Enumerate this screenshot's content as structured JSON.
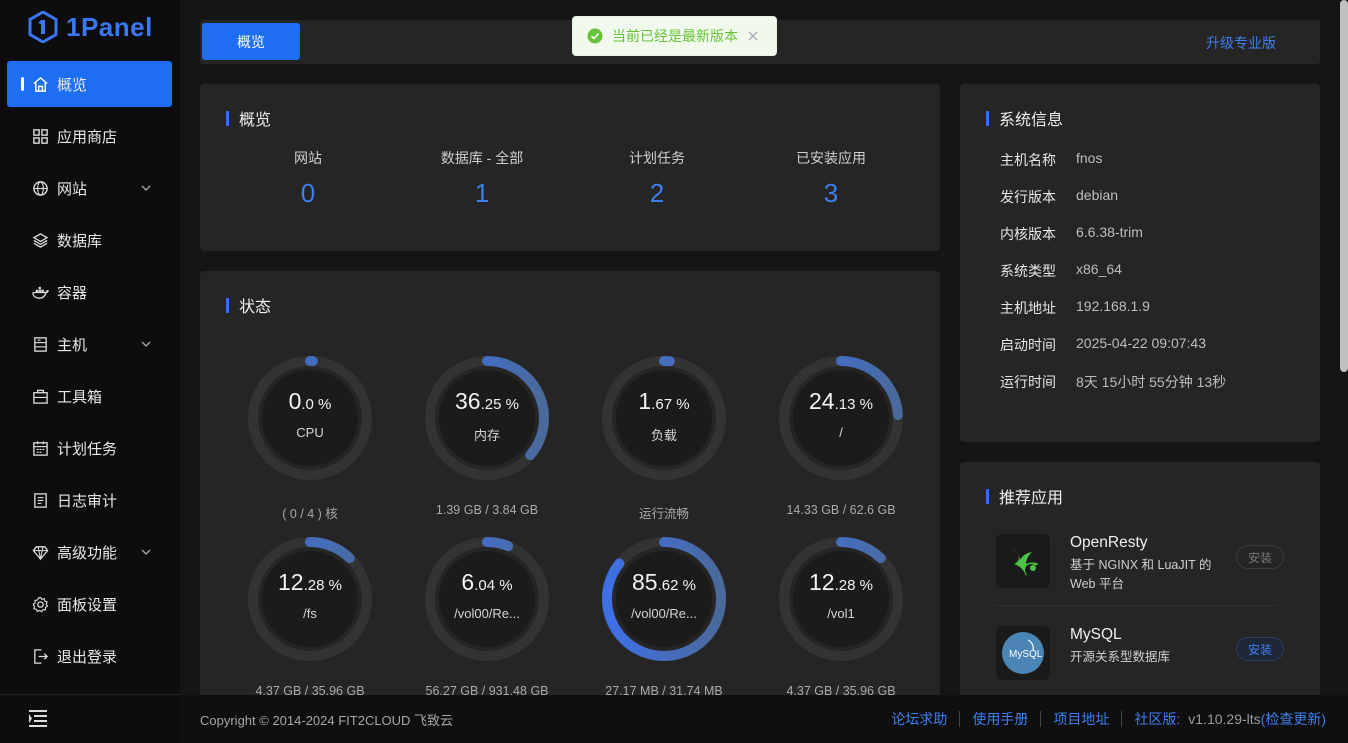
{
  "app": {
    "logo_text": "1Panel"
  },
  "sidebar": {
    "items": [
      {
        "label": "概览",
        "icon": "home-icon",
        "active": true
      },
      {
        "label": "应用商店",
        "icon": "grid-icon"
      },
      {
        "label": "网站",
        "icon": "globe-icon",
        "expandable": true
      },
      {
        "label": "数据库",
        "icon": "layers-icon"
      },
      {
        "label": "容器",
        "icon": "docker-icon"
      },
      {
        "label": "主机",
        "icon": "server-icon",
        "expandable": true
      },
      {
        "label": "工具箱",
        "icon": "toolbox-icon"
      },
      {
        "label": "计划任务",
        "icon": "calendar-icon"
      },
      {
        "label": "日志审计",
        "icon": "log-icon"
      },
      {
        "label": "高级功能",
        "icon": "diamond-icon",
        "expandable": true
      },
      {
        "label": "面板设置",
        "icon": "gear-icon"
      },
      {
        "label": "退出登录",
        "icon": "logout-icon"
      }
    ]
  },
  "header": {
    "tab_label": "概览",
    "upgrade_label": "升级专业版"
  },
  "toast": {
    "message": "当前已经是最新版本"
  },
  "overview": {
    "title": "概览",
    "stats": [
      {
        "label": "网站",
        "value": "0"
      },
      {
        "label": "数据库 - 全部",
        "value": "1"
      },
      {
        "label": "计划任务",
        "value": "2"
      },
      {
        "label": "已安装应用",
        "value": "3"
      }
    ]
  },
  "status": {
    "title": "状态",
    "gauges": [
      {
        "int": "0",
        "dec": ".0",
        "unit": " %",
        "name": "CPU",
        "sub": "( 0 / 4 ) 核",
        "percent": 0.0
      },
      {
        "int": "36",
        "dec": ".25",
        "unit": " %",
        "name": "内存",
        "sub": "1.39 GB / 3.84 GB",
        "percent": 36.25
      },
      {
        "int": "1",
        "dec": ".67",
        "unit": " %",
        "name": "负载",
        "sub": "运行流畅",
        "percent": 1.67
      },
      {
        "int": "24",
        "dec": ".13",
        "unit": " %",
        "name": "/",
        "sub": "14.33 GB / 62.6 GB",
        "percent": 24.13
      },
      {
        "int": "12",
        "dec": ".28",
        "unit": " %",
        "name": "/fs",
        "sub": "4.37 GB / 35.96 GB",
        "percent": 12.28
      },
      {
        "int": "6",
        "dec": ".04",
        "unit": " %",
        "name": "/vol00/Re...",
        "sub": "56.27 GB / 931.48 GB",
        "percent": 6.04
      },
      {
        "int": "85",
        "dec": ".62",
        "unit": " %",
        "name": "/vol00/Re...",
        "sub": "27.17 MB / 31.74 MB",
        "percent": 85.62
      },
      {
        "int": "12",
        "dec": ".28",
        "unit": " %",
        "name": "/vol1",
        "sub": "4.37 GB / 35.96 GB",
        "percent": 12.28
      }
    ]
  },
  "system_info": {
    "title": "系统信息",
    "rows": [
      {
        "key": "主机名称",
        "value": "fnos"
      },
      {
        "key": "发行版本",
        "value": "debian"
      },
      {
        "key": "内核版本",
        "value": "6.6.38-trim"
      },
      {
        "key": "系统类型",
        "value": "x86_64"
      },
      {
        "key": "主机地址",
        "value": "192.168.1.9"
      },
      {
        "key": "启动时间",
        "value": "2025-04-22 09:07:43"
      },
      {
        "key": "运行时间",
        "value": "8天 15小时 55分钟 13秒"
      }
    ]
  },
  "recommended": {
    "title": "推荐应用",
    "apps": [
      {
        "name": "OpenResty",
        "desc": "基于 NGINX 和 LuaJIT 的 Web 平台",
        "button": "安装"
      },
      {
        "name": "MySQL",
        "desc": "开源关系型数据库",
        "button": "安装",
        "icon_text": "MySQL"
      }
    ]
  },
  "footer": {
    "copyright": "Copyright © 2014-2024 FIT2CLOUD 飞致云",
    "links": [
      "论坛求助",
      "使用手册",
      "项目地址",
      "社区版:"
    ],
    "version": "v1.10.29-lts",
    "check_update": "(检查更新)"
  },
  "colors": {
    "accent": "#1d6ef0",
    "link": "#3d7fee",
    "success": "#67c23a",
    "panel": "#252525"
  }
}
